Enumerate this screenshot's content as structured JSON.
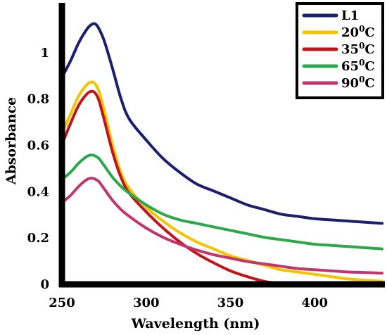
{
  "chart_data": {
    "type": "line",
    "xlabel": "Wavelength (nm)",
    "ylabel": "Absorbance",
    "xlim": [
      250,
      440
    ],
    "ylim": [
      0,
      1.2
    ],
    "xticks": [
      "250",
      "300",
      "350",
      "400"
    ],
    "xtick_values": [
      250,
      300,
      350,
      400
    ],
    "yticks": [
      "0",
      "0.2",
      "0.4",
      "0.6",
      "0.8",
      "1"
    ],
    "ytick_values": [
      0,
      0.2,
      0.4,
      0.6,
      0.8,
      1.0
    ],
    "legend_position": "top-right",
    "series": [
      {
        "name": "L1",
        "label_main": "L1",
        "label_sup": "",
        "label_tail": "",
        "color": "#1a1f6e",
        "x": [
          250,
          255,
          260,
          265,
          268,
          270,
          272,
          275,
          280,
          285,
          290,
          300,
          310,
          320,
          330,
          340,
          350,
          360,
          370,
          380,
          390,
          400,
          410,
          420,
          430,
          440
        ],
        "y": [
          0.89,
          0.96,
          1.04,
          1.1,
          1.12,
          1.12,
          1.1,
          1.05,
          0.93,
          0.8,
          0.71,
          0.62,
          0.54,
          0.48,
          0.43,
          0.4,
          0.37,
          0.34,
          0.32,
          0.3,
          0.29,
          0.28,
          0.275,
          0.27,
          0.265,
          0.26
        ]
      },
      {
        "name": "20oC",
        "label_main": "20",
        "label_sup": "0",
        "label_tail": "C",
        "color": "#f5c400",
        "x": [
          250,
          255,
          260,
          265,
          268,
          270,
          272,
          275,
          280,
          285,
          290,
          300,
          310,
          320,
          330,
          340,
          350,
          360,
          370,
          380,
          390,
          400,
          410,
          420,
          430,
          440
        ],
        "y": [
          0.65,
          0.73,
          0.81,
          0.86,
          0.87,
          0.86,
          0.83,
          0.75,
          0.6,
          0.48,
          0.41,
          0.33,
          0.27,
          0.22,
          0.18,
          0.15,
          0.12,
          0.1,
          0.08,
          0.06,
          0.05,
          0.04,
          0.03,
          0.02,
          0.015,
          0.01
        ]
      },
      {
        "name": "35oC",
        "label_main": "35",
        "label_sup": "0",
        "label_tail": "C",
        "color": "#c0161b",
        "x": [
          250,
          255,
          260,
          265,
          268,
          270,
          272,
          275,
          280,
          285,
          290,
          300,
          310,
          320,
          330,
          340,
          350,
          360,
          370,
          380,
          390
        ],
        "y": [
          0.6,
          0.69,
          0.77,
          0.82,
          0.83,
          0.82,
          0.79,
          0.71,
          0.57,
          0.46,
          0.39,
          0.31,
          0.24,
          0.18,
          0.13,
          0.09,
          0.055,
          0.03,
          0.01,
          0.0,
          0.0
        ]
      },
      {
        "name": "65oC",
        "label_main": "65",
        "label_sup": "0",
        "label_tail": "C",
        "color": "#2aa84a",
        "x": [
          250,
          255,
          260,
          265,
          268,
          270,
          272,
          275,
          280,
          285,
          290,
          300,
          310,
          320,
          330,
          340,
          350,
          360,
          370,
          380,
          390,
          400,
          410,
          420,
          430,
          440
        ],
        "y": [
          0.45,
          0.48,
          0.52,
          0.55,
          0.555,
          0.55,
          0.54,
          0.51,
          0.46,
          0.42,
          0.39,
          0.34,
          0.3,
          0.275,
          0.26,
          0.245,
          0.23,
          0.215,
          0.2,
          0.19,
          0.18,
          0.17,
          0.165,
          0.16,
          0.155,
          0.15
        ]
      },
      {
        "name": "90oC",
        "label_main": "90",
        "label_sup": "0",
        "label_tail": "C",
        "color": "#c2366e",
        "x": [
          250,
          255,
          260,
          265,
          268,
          270,
          272,
          275,
          280,
          285,
          290,
          300,
          310,
          320,
          330,
          340,
          350,
          360,
          370,
          380,
          390,
          400,
          410,
          420,
          430,
          440
        ],
        "y": [
          0.35,
          0.38,
          0.42,
          0.45,
          0.455,
          0.45,
          0.44,
          0.41,
          0.36,
          0.32,
          0.29,
          0.24,
          0.2,
          0.17,
          0.145,
          0.125,
          0.11,
          0.095,
          0.085,
          0.075,
          0.065,
          0.06,
          0.055,
          0.05,
          0.048,
          0.045
        ]
      }
    ]
  }
}
